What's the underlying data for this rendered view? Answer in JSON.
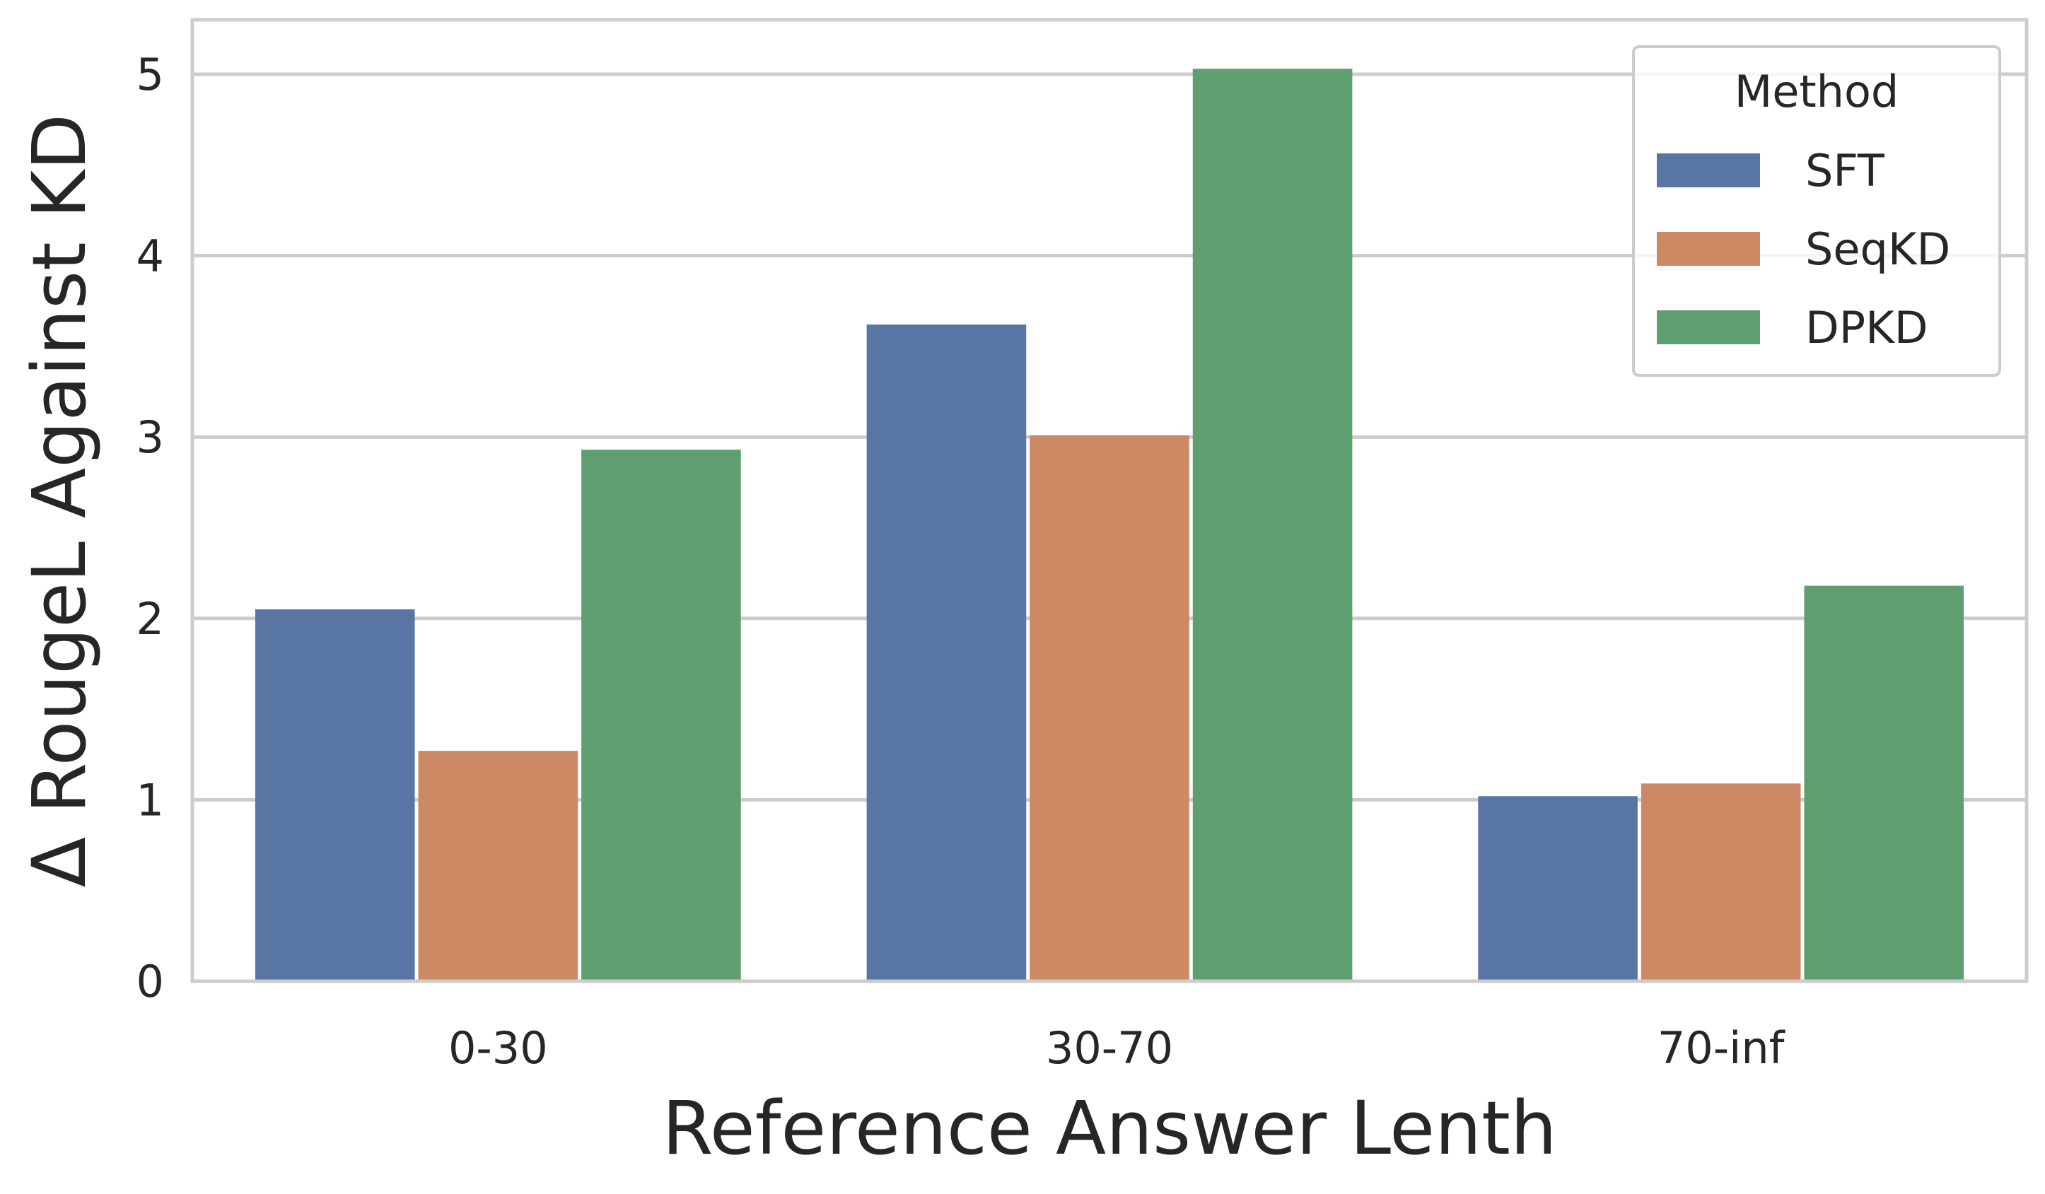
{
  "chart_data": {
    "type": "bar",
    "title": "",
    "xlabel": "Reference Answer Lenth",
    "ylabel": "Δ RougeL Against KD",
    "categories": [
      "0-30",
      "30-70",
      "70-inf"
    ],
    "ylim": [
      0,
      5.3
    ],
    "yticks": [
      0,
      1,
      2,
      3,
      4,
      5
    ],
    "grid": true,
    "legend": {
      "title": "Method",
      "placement": "top-right"
    },
    "series": [
      {
        "name": "SFT",
        "color": "#5875a4",
        "values": [
          2.05,
          3.62,
          1.02
        ]
      },
      {
        "name": "SeqKD",
        "color": "#cc8963",
        "values": [
          1.27,
          3.01,
          1.09
        ]
      },
      {
        "name": "DPKD",
        "color": "#5f9e6e",
        "values": [
          2.93,
          5.03,
          2.18
        ]
      }
    ]
  }
}
